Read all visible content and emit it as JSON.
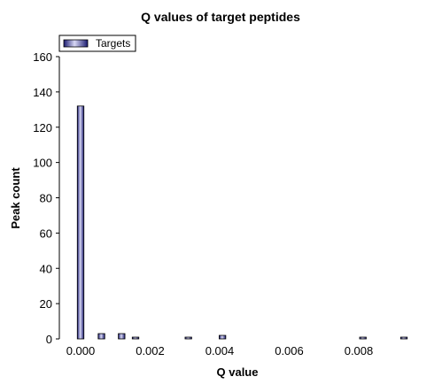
{
  "chart_data": {
    "type": "bar",
    "title": "Q values of target peptides",
    "xlabel": "Q value",
    "ylabel": "Peak count",
    "xlim": [
      -0.0007,
      0.0095
    ],
    "ylim": [
      0,
      160
    ],
    "x_ticks": [
      0.0,
      0.002,
      0.004,
      0.006,
      0.008
    ],
    "x_tick_labels": [
      "0.000",
      "0.002",
      "0.004",
      "0.006",
      "0.008"
    ],
    "y_ticks": [
      0,
      20,
      40,
      60,
      80,
      100,
      120,
      140,
      160
    ],
    "y_tick_labels": [
      "0",
      "20",
      "40",
      "60",
      "80",
      "100",
      "120",
      "140",
      "160"
    ],
    "bin_width": 0.00019,
    "grid": false,
    "legend_position": "top-left",
    "series": [
      {
        "name": "Targets",
        "color": "#2a2a8a",
        "x": [
          0.0,
          0.0006,
          0.00118,
          0.00158,
          0.0031,
          0.00408,
          0.00812,
          0.0093
        ],
        "values": [
          132,
          3,
          3,
          1,
          1,
          2,
          1,
          1
        ]
      }
    ]
  }
}
